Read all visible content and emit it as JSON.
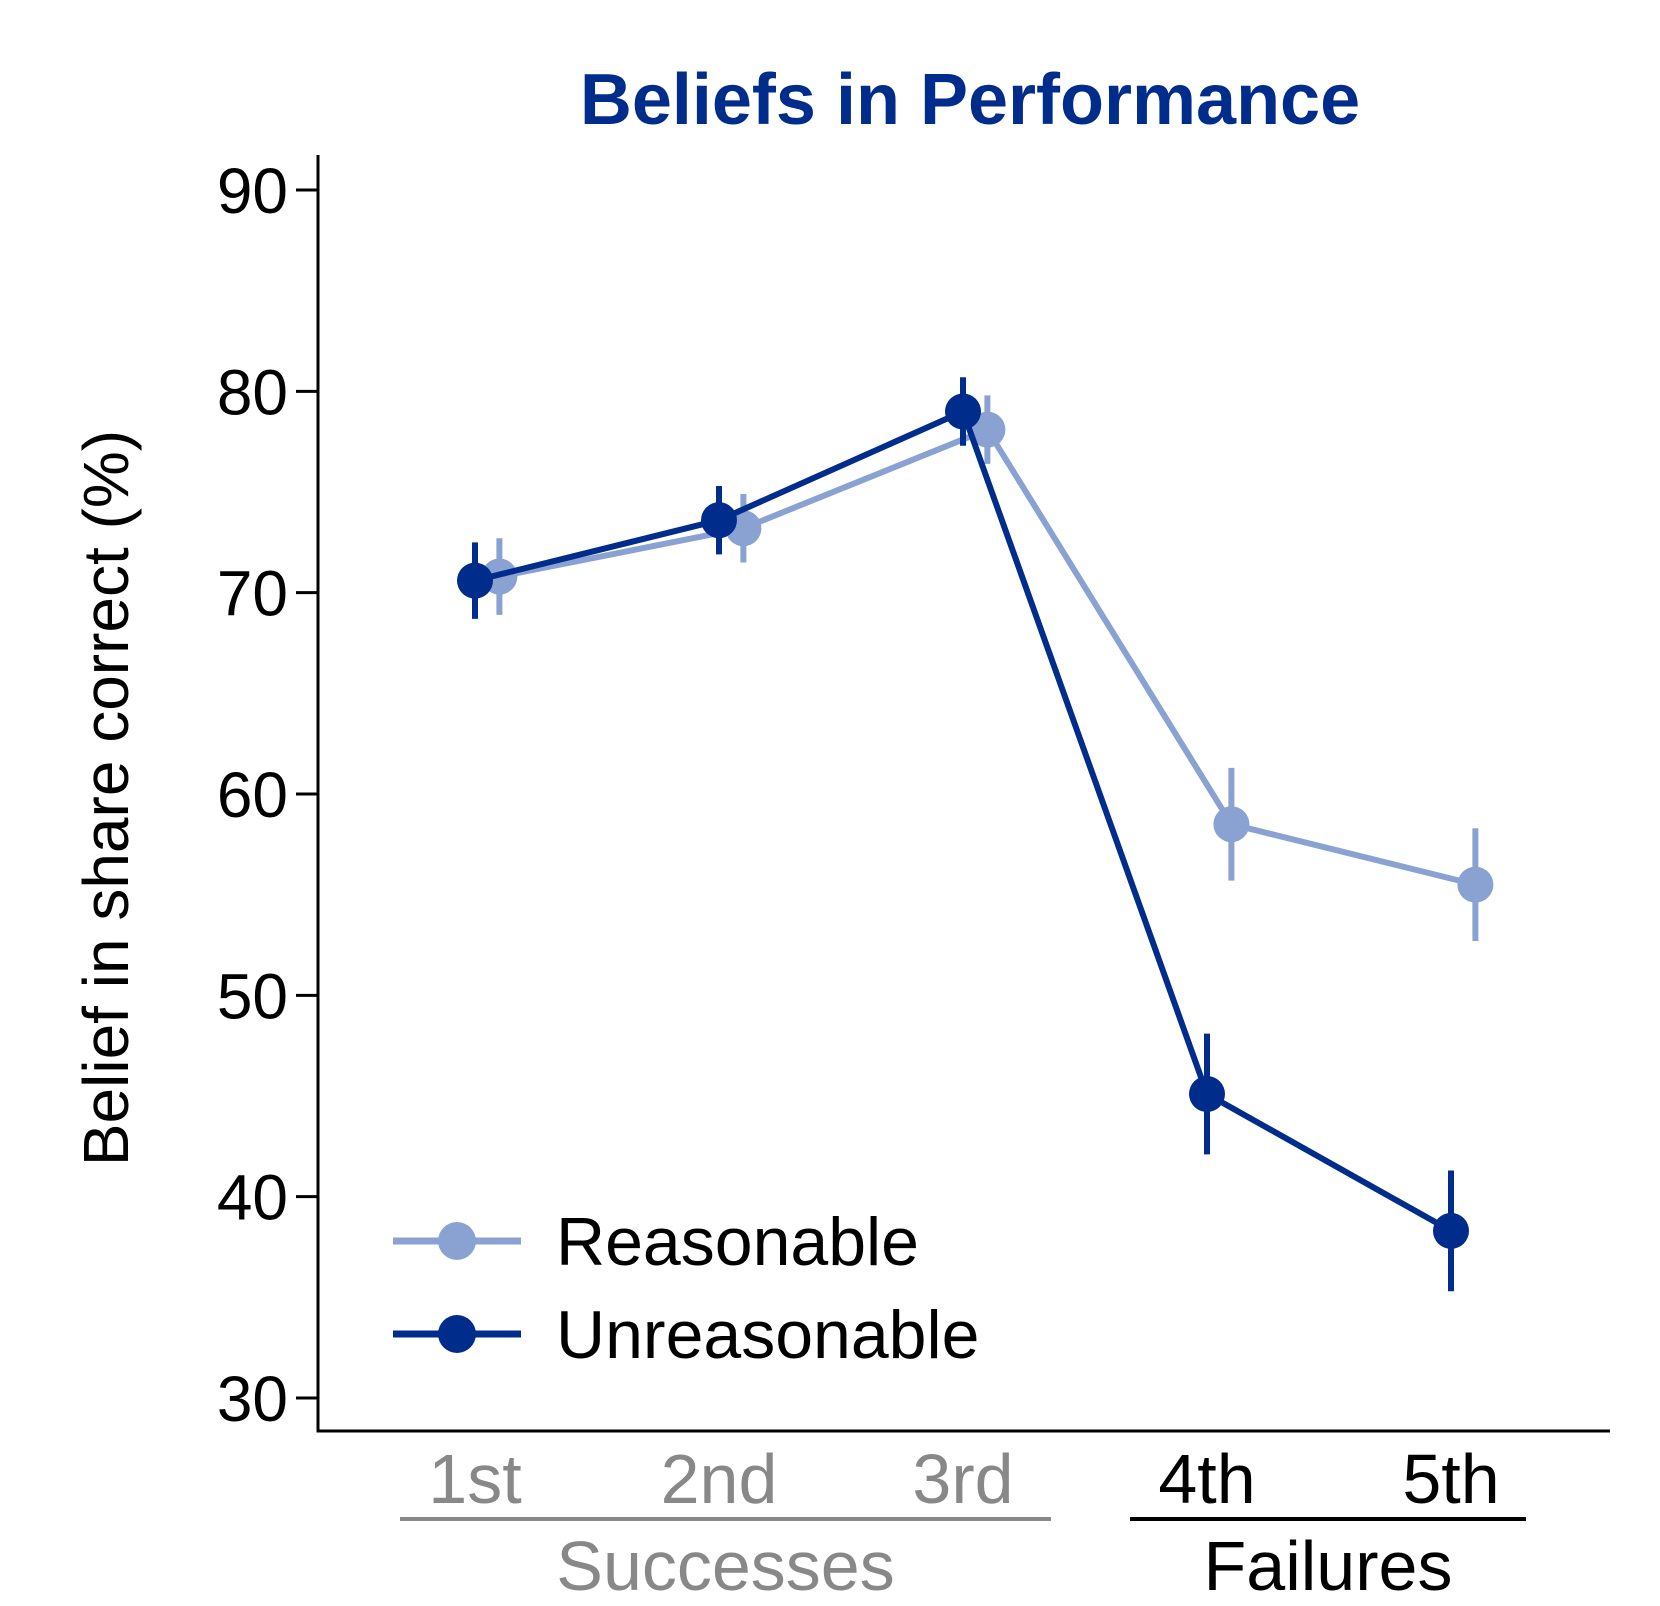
{
  "chart_data": {
    "type": "line",
    "title": "Beliefs in Performance",
    "ylabel": "Belief in share correct (%)",
    "xlabel": "",
    "ylim": [
      30,
      90
    ],
    "yticks": [
      30,
      40,
      50,
      60,
      70,
      80,
      90
    ],
    "categories": [
      "1st",
      "2nd",
      "3rd",
      "4th",
      "5th"
    ],
    "groups": [
      {
        "label": "Successes",
        "categories": [
          "1st",
          "2nd",
          "3rd"
        ],
        "color": "#888888"
      },
      {
        "label": "Failures",
        "categories": [
          "4th",
          "5th"
        ],
        "color": "#000000"
      }
    ],
    "series": [
      {
        "name": "Reasonable",
        "color": "#8aa2d2",
        "offset": 0.1,
        "values": [
          70.8,
          73.2,
          78.1,
          58.5,
          55.5
        ],
        "ci_low": [
          68.9,
          71.5,
          76.4,
          55.7,
          52.7
        ],
        "ci_high": [
          72.7,
          74.9,
          79.8,
          61.3,
          58.3
        ]
      },
      {
        "name": "Unreasonable",
        "color": "#002c8c",
        "offset": 0.0,
        "values": [
          70.6,
          73.6,
          79.0,
          45.1,
          38.3
        ],
        "ci_low": [
          68.7,
          71.9,
          77.3,
          42.1,
          35.3
        ],
        "ci_high": [
          72.5,
          75.3,
          80.7,
          48.1,
          41.3
        ]
      }
    ],
    "title_color": "#002c8c",
    "grid": false,
    "legend": "bottom-left"
  }
}
